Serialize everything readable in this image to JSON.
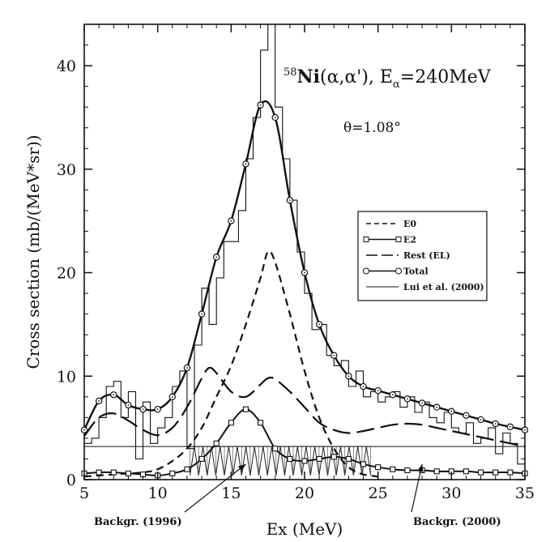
{
  "chart_data": {
    "type": "line",
    "title_prefix_super": "58",
    "title_element": "Ni",
    "title_reaction": "(α,α'), E",
    "title_sub": "α",
    "title_suffix": "=240MeV",
    "angle_label": "θ=1.08°",
    "xlabel": "Ex (MeV)",
    "ylabel": "Cross section (mb/(MeV*sr))",
    "xlim": [
      5,
      35
    ],
    "ylim": [
      0,
      44
    ],
    "xticks": [
      5,
      10,
      15,
      20,
      25,
      30,
      35
    ],
    "yticks": [
      0,
      10,
      20,
      30,
      40
    ],
    "legend_position": "right-middle",
    "legend": [
      {
        "label": "E0",
        "style": "short-dash"
      },
      {
        "label": "E2",
        "style": "solid-square"
      },
      {
        "label": "Rest (EL)",
        "style": "long-dash"
      },
      {
        "label": "Total",
        "style": "solid-circle"
      },
      {
        "label": "Lui et al. (2000)",
        "style": "thin-solid"
      }
    ],
    "annotations": [
      {
        "text": "Backgr. (1996)",
        "arrow_to": [
          16.0,
          1.5
        ]
      },
      {
        "text": "Backgr. (2000)",
        "arrow_to": [
          28.0,
          1.5
        ]
      }
    ],
    "series": [
      {
        "name": "Total",
        "marker": "circle",
        "x": [
          5,
          6,
          7,
          8,
          9,
          10,
          11,
          12,
          13,
          14,
          15,
          16,
          17,
          18,
          19,
          20,
          21,
          22,
          23,
          24,
          25,
          26,
          27,
          28,
          29,
          30,
          31,
          32,
          33,
          34,
          35
        ],
        "y": [
          4.8,
          7.6,
          8.2,
          7.2,
          6.8,
          6.8,
          8.0,
          10.8,
          16.0,
          21.5,
          25.0,
          30.5,
          36.2,
          35.0,
          27.0,
          20.0,
          15.0,
          12.0,
          10.0,
          9.0,
          8.6,
          8.2,
          7.8,
          7.4,
          7.0,
          6.6,
          6.2,
          5.8,
          5.4,
          5.1,
          4.8
        ]
      },
      {
        "name": "E0",
        "x": [
          5,
          7,
          9,
          10,
          11,
          12,
          13,
          14,
          15,
          16,
          17,
          17.5,
          18,
          19,
          20,
          21,
          22,
          23,
          24,
          25
        ],
        "y": [
          0.3,
          0.5,
          0.7,
          1.0,
          1.8,
          3.0,
          5.0,
          8.0,
          11.0,
          15.0,
          19.5,
          22.0,
          21.0,
          16.0,
          10.5,
          6.0,
          3.0,
          1.2,
          0.5,
          0.3
        ]
      },
      {
        "name": "E2",
        "marker": "square",
        "x": [
          5,
          6,
          7,
          8,
          9,
          10,
          11,
          12,
          13,
          14,
          15,
          16,
          17,
          18,
          19,
          20,
          21,
          22,
          23,
          24,
          25,
          26,
          27,
          28,
          29,
          30,
          31,
          32,
          33,
          34,
          35
        ],
        "y": [
          0.6,
          0.7,
          0.7,
          0.6,
          0.5,
          0.4,
          0.6,
          1.0,
          2.0,
          3.5,
          5.5,
          6.8,
          5.5,
          3.0,
          2.0,
          1.8,
          2.0,
          2.2,
          2.0,
          1.5,
          1.2,
          1.0,
          0.9,
          0.9,
          0.8,
          0.8,
          0.8,
          0.7,
          0.7,
          0.7,
          0.6
        ]
      },
      {
        "name": "Rest (EL)",
        "x": [
          5,
          6,
          7,
          8,
          9,
          10,
          11,
          12,
          13,
          13.5,
          14,
          15,
          16,
          17,
          17.5,
          18,
          19,
          20,
          21,
          22,
          23,
          24,
          25,
          26,
          27,
          28,
          29,
          30,
          31,
          32,
          33,
          34,
          35
        ],
        "y": [
          4.2,
          6.0,
          6.4,
          5.7,
          4.8,
          4.3,
          5.0,
          7.0,
          9.8,
          10.8,
          10.3,
          8.5,
          8.0,
          9.2,
          9.8,
          9.7,
          8.5,
          7.0,
          5.5,
          4.8,
          4.5,
          4.7,
          5.0,
          5.3,
          5.4,
          5.3,
          5.0,
          4.7,
          4.4,
          4.1,
          3.8,
          3.5,
          3.2
        ]
      },
      {
        "name": "Lui et al. (2000)",
        "type": "step",
        "edges": [
          5,
          5.5,
          6,
          6.5,
          7,
          7.5,
          8,
          8.5,
          9,
          9.5,
          10,
          10.5,
          11,
          11.5,
          12,
          12.5,
          13,
          13.5,
          14,
          14.5,
          15,
          15.5,
          16,
          16.5,
          17,
          17.5,
          18,
          18.5,
          19,
          19.5,
          20,
          20.5,
          21,
          21.5,
          22,
          22.5,
          23,
          23.5,
          24,
          24.5,
          25,
          25.5,
          26,
          26.5,
          27,
          27.5,
          28,
          28.5,
          29,
          29.5,
          30,
          30.5,
          31,
          31.5,
          32,
          32.5,
          33,
          33.5,
          34,
          34.5,
          35
        ],
        "y": [
          3.5,
          4.0,
          6.0,
          9.0,
          9.5,
          6.0,
          8.5,
          2.0,
          7.5,
          3.5,
          5.0,
          6.0,
          9.0,
          10.5,
          3.0,
          13.0,
          18.5,
          15.0,
          19.5,
          23.0,
          23.0,
          26.0,
          31.0,
          35.0,
          41.5,
          44.0,
          36.0,
          31.0,
          27.0,
          22.0,
          18.0,
          14.5,
          15.0,
          12.0,
          11.0,
          11.5,
          9.0,
          10.5,
          8.0,
          8.5,
          7.5,
          8.0,
          8.5,
          7.0,
          8.0,
          6.5,
          7.5,
          6.0,
          5.5,
          6.5,
          5.0,
          4.5,
          5.5,
          3.5,
          4.0,
          5.0,
          2.5,
          4.5,
          3.5,
          1.5
        ]
      },
      {
        "name": "Backgr. (2000)",
        "x": [
          5,
          35
        ],
        "y": [
          3.2,
          3.2
        ]
      },
      {
        "name": "Backgr. (1996)",
        "type": "zigzag",
        "x_range": [
          12.2,
          24.5
        ],
        "y_low": 0.4,
        "y_high": 3.2,
        "n_teeth": 21
      }
    ]
  }
}
